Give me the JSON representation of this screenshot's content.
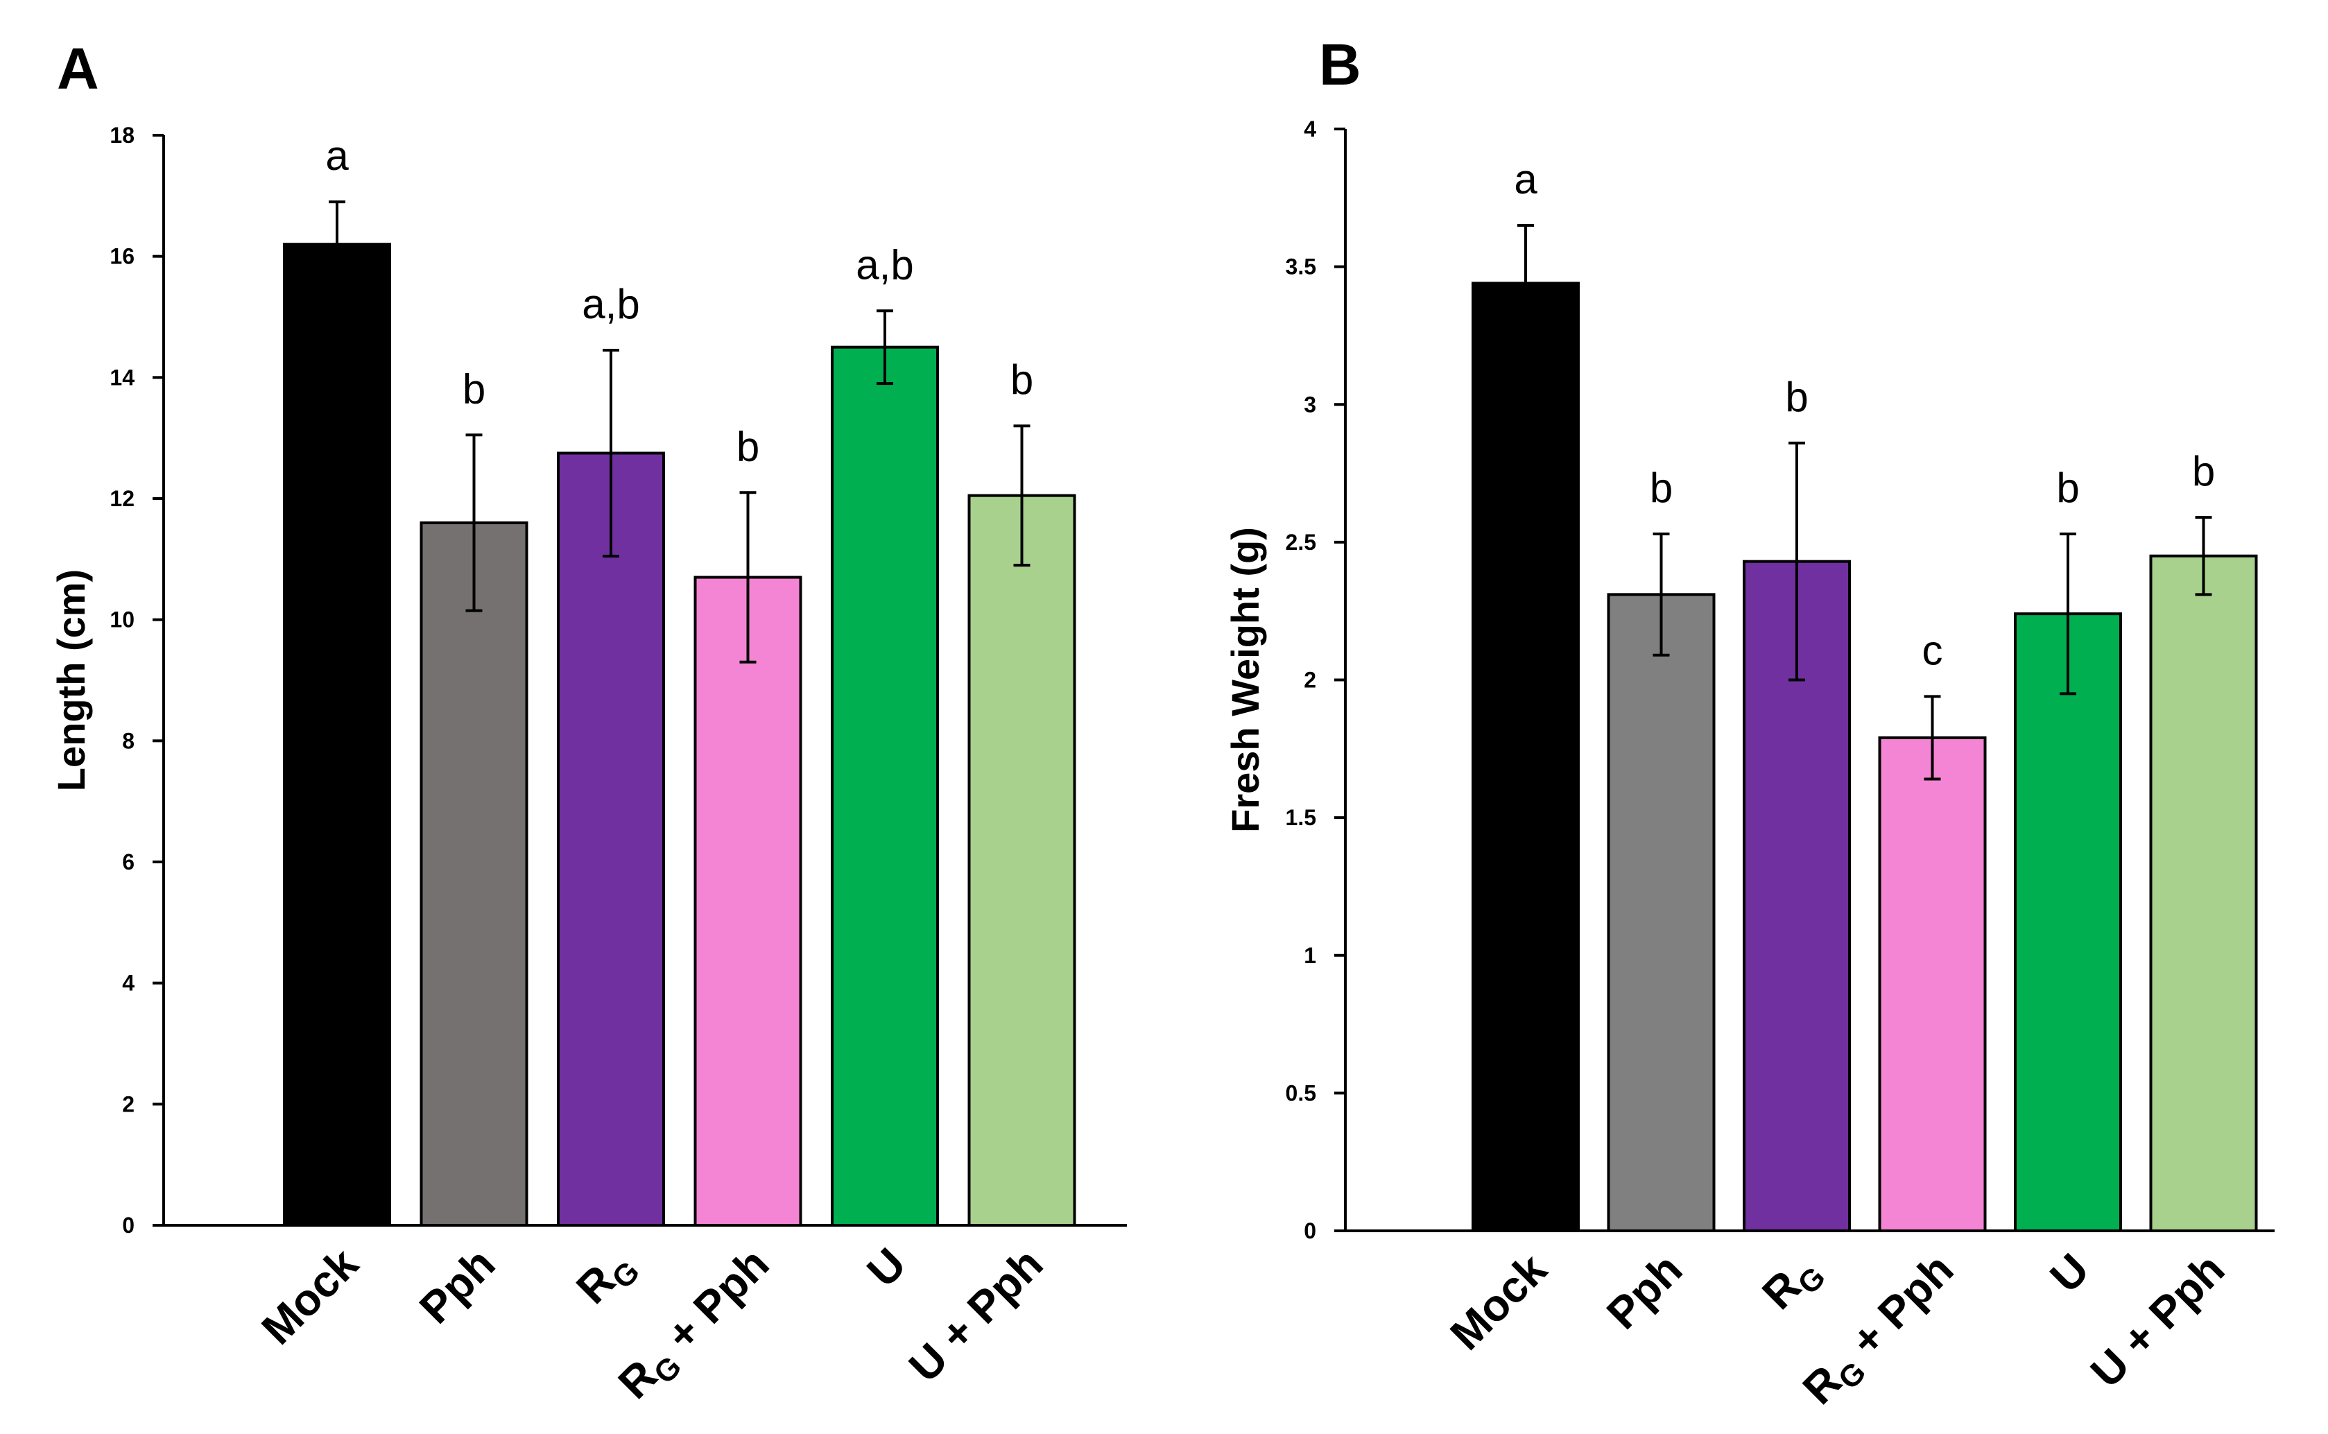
{
  "chart_data": [
    {
      "type": "bar",
      "panel": "A",
      "title": "",
      "xlabel": "",
      "ylabel": "Length (cm)",
      "ylim": [
        0,
        18
      ],
      "yticks": [
        0,
        2,
        4,
        6,
        8,
        10,
        12,
        14,
        16,
        18
      ],
      "categories": [
        {
          "main": "Mock",
          "sub": "",
          "rest": ""
        },
        {
          "main": "Pph",
          "sub": "",
          "rest": ""
        },
        {
          "main": "R",
          "sub": "G",
          "rest": ""
        },
        {
          "main": "R",
          "sub": "G",
          "rest": " + Pph"
        },
        {
          "main": "U",
          "sub": "",
          "rest": ""
        },
        {
          "main": "U + Pph",
          "sub": "",
          "rest": ""
        }
      ],
      "values": [
        16.2,
        11.6,
        12.75,
        10.7,
        14.5,
        12.05
      ],
      "errors": [
        0.7,
        1.45,
        1.7,
        1.4,
        0.6,
        1.15
      ],
      "significance": [
        "a",
        "b",
        "a,b",
        "b",
        "a,b",
        "b"
      ],
      "colors": [
        "#000000",
        "#767171",
        "#7030a0",
        "#f484d4",
        "#00b050",
        "#a9d18e"
      ],
      "grid": false,
      "legend": "none"
    },
    {
      "type": "bar",
      "panel": "B",
      "title": "",
      "xlabel": "",
      "ylabel": "Fresh Weight (g)",
      "ylim": [
        0,
        4
      ],
      "yticks": [
        0,
        0.5,
        1,
        1.5,
        2,
        2.5,
        3,
        3.5,
        4
      ],
      "categories": [
        {
          "main": "Mock",
          "sub": "",
          "rest": ""
        },
        {
          "main": "Pph",
          "sub": "",
          "rest": ""
        },
        {
          "main": "R",
          "sub": "G",
          "rest": ""
        },
        {
          "main": "R",
          "sub": "G",
          "rest": " + Pph"
        },
        {
          "main": "U",
          "sub": "",
          "rest": ""
        },
        {
          "main": "U + Pph",
          "sub": "",
          "rest": ""
        }
      ],
      "values": [
        3.44,
        2.31,
        2.43,
        1.79,
        2.24,
        2.45
      ],
      "errors": [
        0.21,
        0.22,
        0.43,
        0.15,
        0.29,
        0.14
      ],
      "significance": [
        "a",
        "b",
        "b",
        "c",
        "b",
        "b"
      ],
      "colors": [
        "#000000",
        "#808080",
        "#7030a0",
        "#f484d4",
        "#00b050",
        "#a9d18e"
      ],
      "grid": false,
      "legend": "none"
    }
  ]
}
